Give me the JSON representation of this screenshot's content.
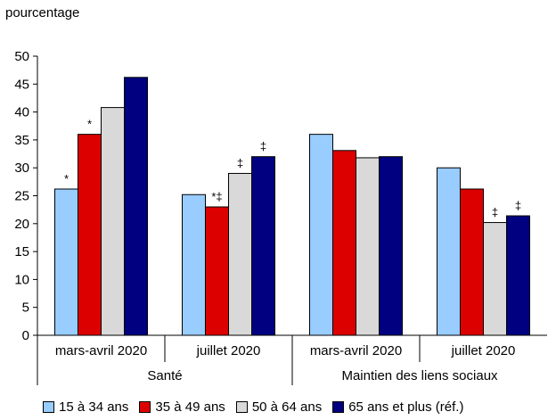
{
  "chart_data": {
    "type": "bar",
    "ylabel": "pourcentage",
    "ylim": [
      0,
      50
    ],
    "yticks": [
      0,
      5,
      10,
      15,
      20,
      25,
      30,
      35,
      40,
      45,
      50
    ],
    "grid": false,
    "legend_position": "bottom",
    "groups": [
      {
        "name": "Santé",
        "categories": [
          "mars-avril 2020",
          "juillet 2020"
        ]
      },
      {
        "name": "Maintien des liens sociaux",
        "categories": [
          "mars-avril 2020",
          "juillet 2020"
        ]
      }
    ],
    "series": [
      {
        "name": "15 à 34 ans",
        "color": "#99ccff",
        "values": [
          26.2,
          25.2,
          36.0,
          30.0
        ],
        "marks": [
          "*",
          "",
          "",
          ""
        ]
      },
      {
        "name": "35 à 49 ans",
        "color": "#dd0000",
        "values": [
          36.0,
          23.0,
          33.1,
          26.2
        ],
        "marks": [
          "*",
          "*‡",
          "",
          ""
        ]
      },
      {
        "name": "50 à 64 ans",
        "color": "#d9d9d9",
        "values": [
          40.8,
          29.0,
          31.8,
          20.2
        ],
        "marks": [
          "",
          "‡",
          "",
          "‡"
        ]
      },
      {
        "name": "65 ans et plus (réf.)",
        "color": "#000080",
        "values": [
          46.2,
          32.0,
          32.0,
          21.4
        ],
        "marks": [
          "",
          "‡",
          "",
          "‡"
        ]
      }
    ]
  }
}
